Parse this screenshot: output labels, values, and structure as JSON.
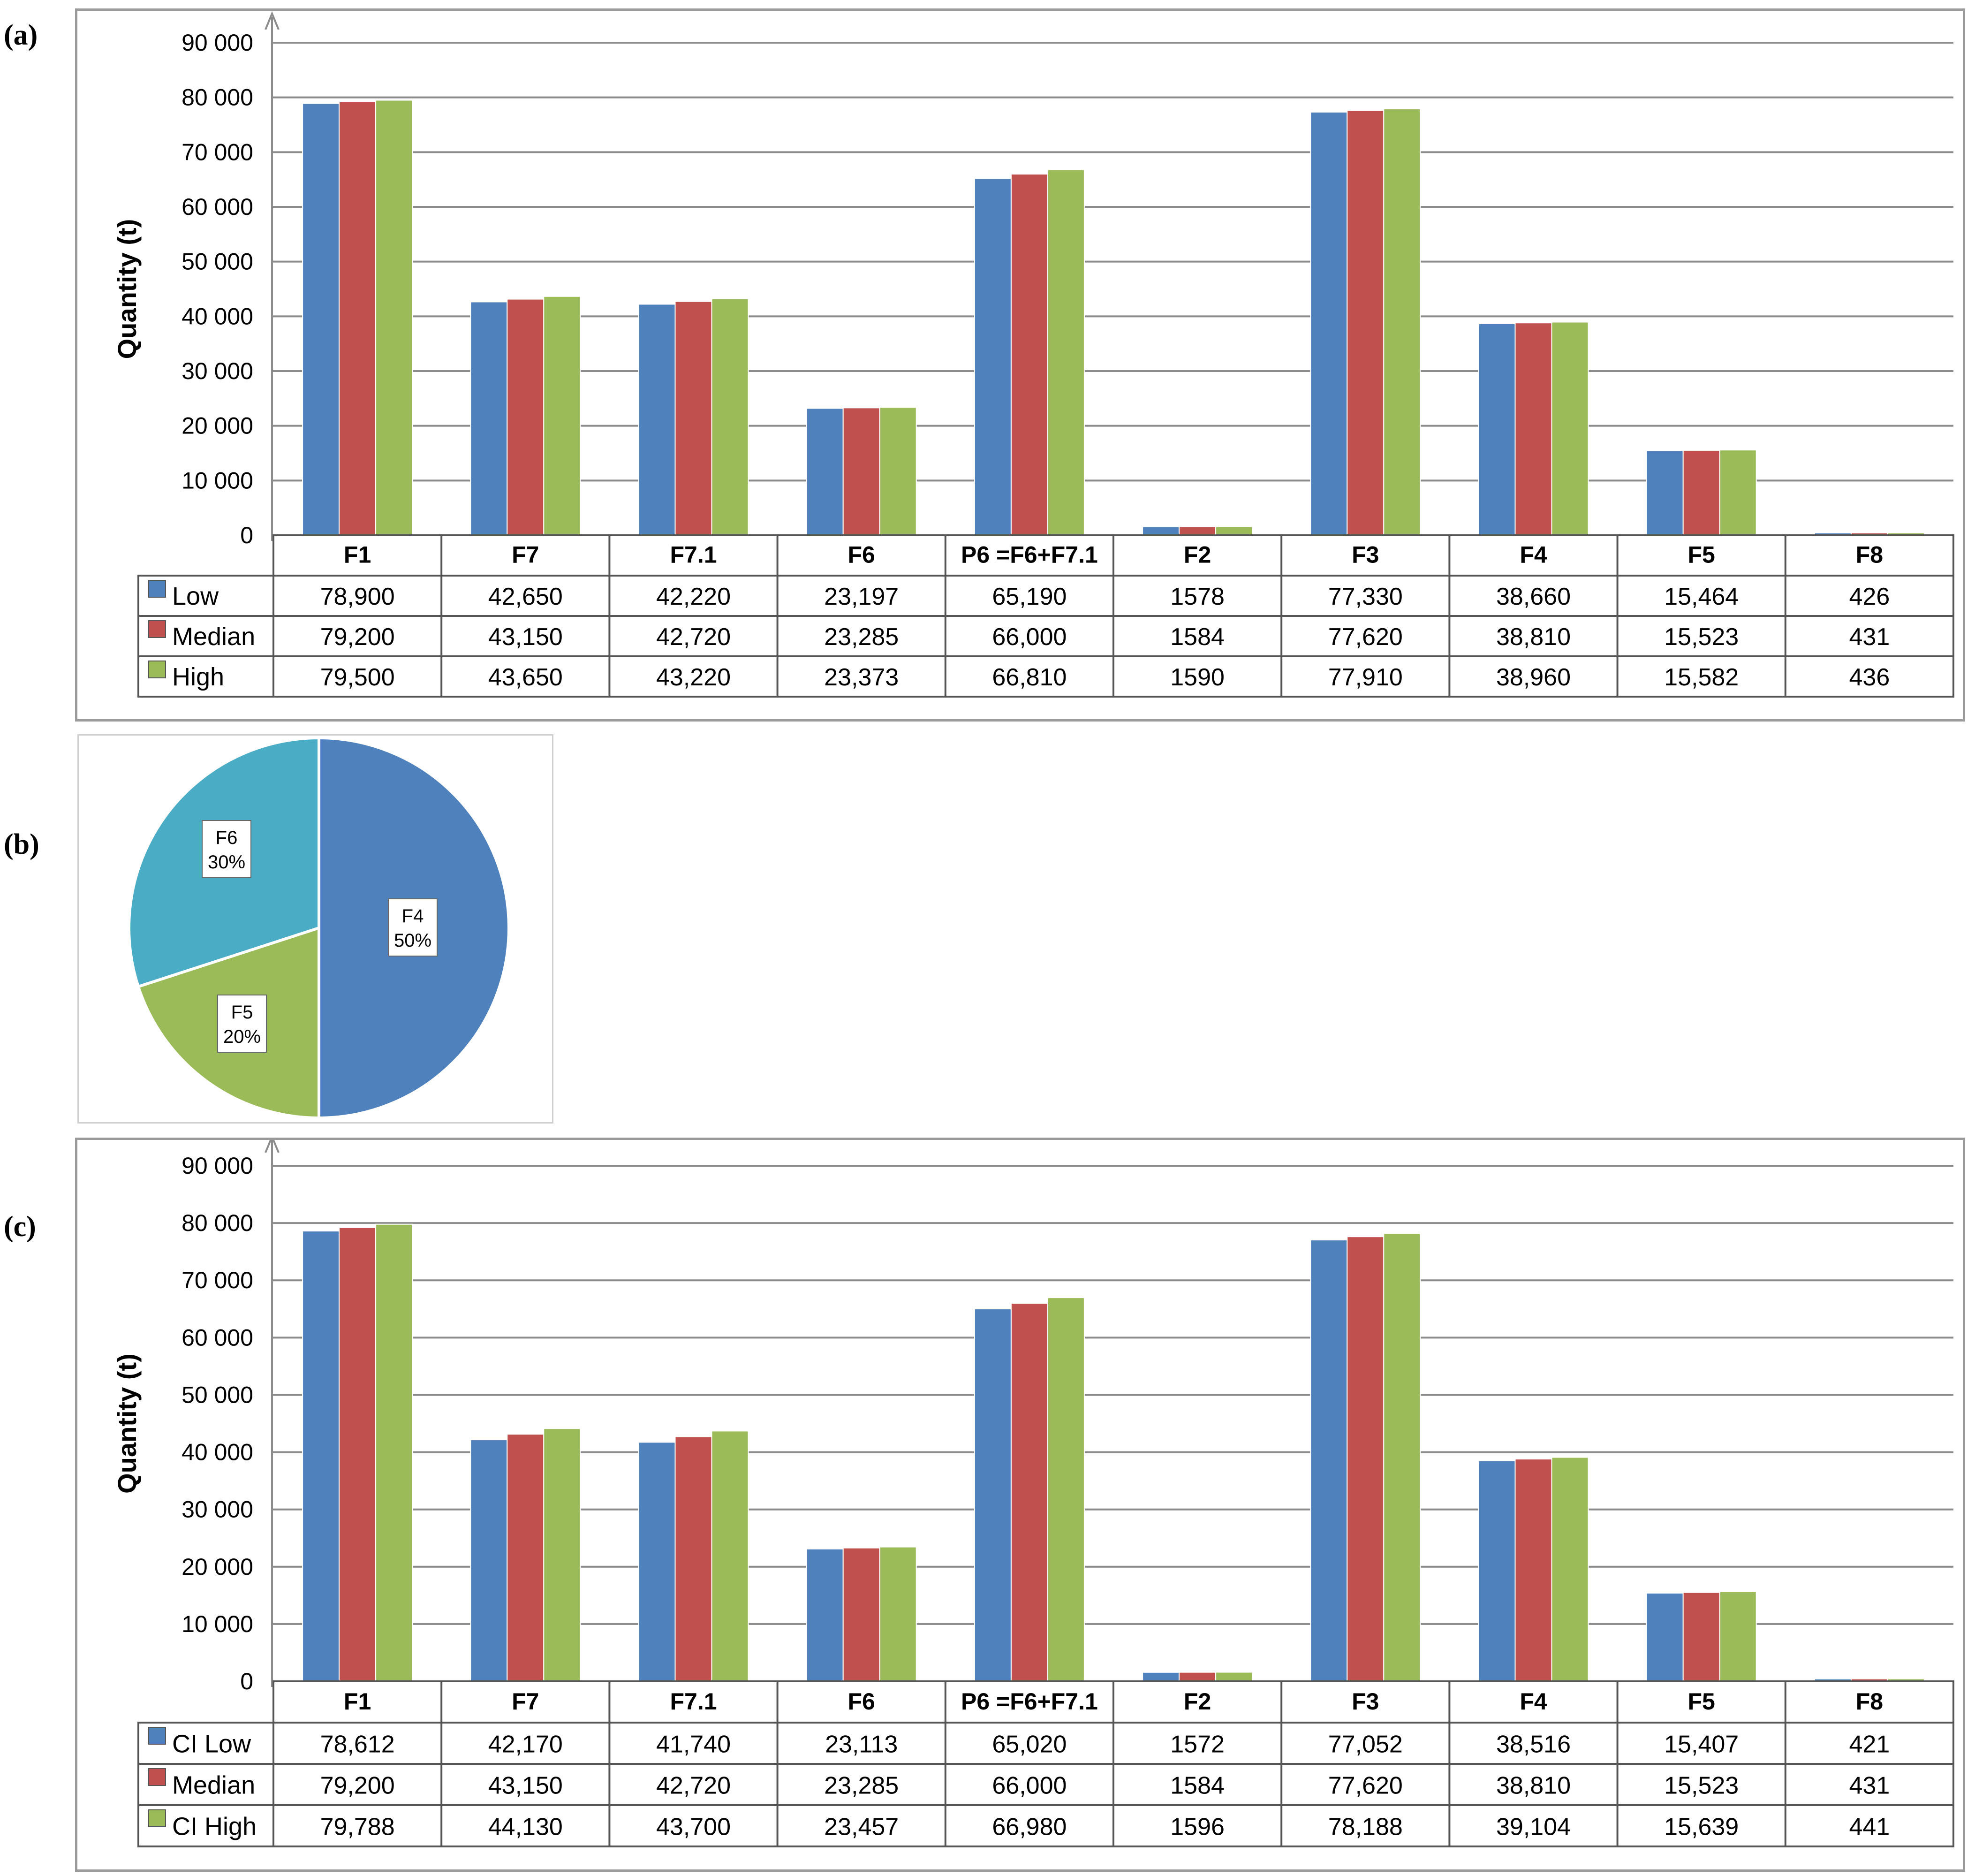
{
  "panel_labels": {
    "a": "(a)",
    "b": "(b)",
    "c": "(c)"
  },
  "colors": {
    "low": "#4f81bd",
    "median": "#c0504d",
    "high": "#9bbb59",
    "pie_f4": "#4f81bd",
    "pie_f5": "#9bbb59",
    "pie_f6": "#4bacc6",
    "grid": "#8c8c8c"
  },
  "chart_data": [
    {
      "type": "bar",
      "panel": "(a)",
      "ylabel": "Quantity (t)",
      "ylim": [
        0,
        90000
      ],
      "yticks": [
        "0",
        "10 000",
        "20 000",
        "30 000",
        "40 000",
        "50 000",
        "60 000",
        "70 000",
        "80 000",
        "90 000"
      ],
      "grid": true,
      "categories": [
        "F1",
        "F7",
        "F7.1",
        "F6",
        "P6 =F6+F7.1",
        "F2",
        "F3",
        "F4",
        "F5",
        "F8"
      ],
      "series": [
        {
          "name": "Low",
          "values": [
            78900,
            42650,
            42220,
            23197,
            65190,
            1578,
            77330,
            38660,
            15464,
            426
          ],
          "labels": [
            "78,900",
            "42,650",
            "42,220",
            "23,197",
            "65,190",
            "1578",
            "77,330",
            "38,660",
            "15,464",
            "426"
          ]
        },
        {
          "name": "Median",
          "values": [
            79200,
            43150,
            42720,
            23285,
            66000,
            1584,
            77620,
            38810,
            15523,
            431
          ],
          "labels": [
            "79,200",
            "43,150",
            "42,720",
            "23,285",
            "66,000",
            "1584",
            "77,620",
            "38,810",
            "15,523",
            "431"
          ]
        },
        {
          "name": "High",
          "values": [
            79500,
            43650,
            43220,
            23373,
            66810,
            1590,
            77910,
            38960,
            15582,
            436
          ],
          "labels": [
            "79,500",
            "43,650",
            "43,220",
            "23,373",
            "66,810",
            "1590",
            "77,910",
            "38,960",
            "15,582",
            "436"
          ]
        }
      ]
    },
    {
      "type": "pie",
      "panel": "(b)",
      "slices": [
        {
          "name": "F4",
          "value": 50,
          "label": "50%"
        },
        {
          "name": "F5",
          "value": 20,
          "label": "20%"
        },
        {
          "name": "F6",
          "value": 30,
          "label": "30%"
        }
      ]
    },
    {
      "type": "bar",
      "panel": "(c)",
      "ylabel": "Quantity (t)",
      "ylim": [
        0,
        90000
      ],
      "yticks": [
        "0",
        "10 000",
        "20 000",
        "30 000",
        "40 000",
        "50 000",
        "60 000",
        "70 000",
        "80 000",
        "90 000"
      ],
      "grid": true,
      "categories": [
        "F1",
        "F7",
        "F7.1",
        "F6",
        "P6 =F6+F7.1",
        "F2",
        "F3",
        "F4",
        "F5",
        "F8"
      ],
      "series": [
        {
          "name": "CI Low",
          "values": [
            78612,
            42170,
            41740,
            23113,
            65020,
            1572,
            77052,
            38516,
            15407,
            421
          ],
          "labels": [
            "78,612",
            "42,170",
            "41,740",
            "23,113",
            "65,020",
            "1572",
            "77,052",
            "38,516",
            "15,407",
            "421"
          ]
        },
        {
          "name": "Median",
          "values": [
            79200,
            43150,
            42720,
            23285,
            66000,
            1584,
            77620,
            38810,
            15523,
            431
          ],
          "labels": [
            "79,200",
            "43,150",
            "42,720",
            "23,285",
            "66,000",
            "1584",
            "77,620",
            "38,810",
            "15,523",
            "431"
          ]
        },
        {
          "name": "CI High",
          "values": [
            79788,
            44130,
            43700,
            23457,
            66980,
            1596,
            78188,
            39104,
            15639,
            441
          ],
          "labels": [
            "79,788",
            "44,130",
            "43,700",
            "23,457",
            "66,980",
            "1596",
            "78,188",
            "39,104",
            "15,639",
            "441"
          ]
        }
      ]
    }
  ]
}
